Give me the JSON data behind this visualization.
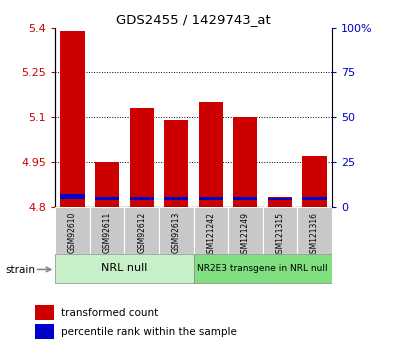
{
  "title": "GDS2455 / 1429743_at",
  "samples": [
    "GSM92610",
    "GSM92611",
    "GSM92612",
    "GSM92613",
    "GSM121242",
    "GSM121249",
    "GSM121315",
    "GSM121316"
  ],
  "red_values": [
    5.39,
    4.95,
    5.13,
    5.09,
    5.15,
    5.1,
    4.835,
    4.97
  ],
  "blue_bottom": [
    4.826,
    4.822,
    4.823,
    4.822,
    4.823,
    4.823,
    4.823,
    4.823
  ],
  "blue_heights": [
    0.016,
    0.01,
    0.01,
    0.01,
    0.01,
    0.01,
    0.008,
    0.01
  ],
  "ymin": 4.8,
  "ymax": 5.4,
  "yticks": [
    4.8,
    4.95,
    5.1,
    5.25,
    5.4
  ],
  "ytick_labels": [
    "4.8",
    "4.95",
    "5.1",
    "5.25",
    "5.4"
  ],
  "right_yticks": [
    0,
    25,
    50,
    75,
    100
  ],
  "right_ytick_labels": [
    "0",
    "25",
    "50",
    "75",
    "100%"
  ],
  "grid_values": [
    4.95,
    5.1,
    5.25
  ],
  "bar_bottom": 4.8,
  "bar_width": 0.7,
  "group1_label": "NRL null",
  "group2_label": "NR2E3 transgene in NRL null",
  "group1_indices": [
    0,
    1,
    2,
    3
  ],
  "group2_indices": [
    4,
    5,
    6,
    7
  ],
  "group1_color": "#c8f0c8",
  "group2_color": "#80e080",
  "tick_label_bg": "#c8c8c8",
  "red_color": "#cc0000",
  "blue_color": "#0000cc",
  "strain_label": "strain",
  "legend_red": "transformed count",
  "legend_blue": "percentile rank within the sample"
}
